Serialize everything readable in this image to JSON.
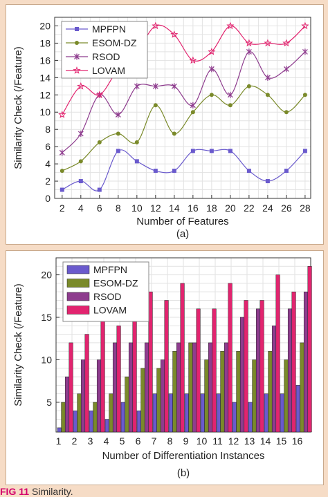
{
  "caption": {
    "label": "FIG 11",
    "text": "Similarity."
  },
  "colors": {
    "MPFPN": "#6a5acd",
    "ESOM-DZ": "#7a8a2a",
    "RSOD": "#8e3c8e",
    "LOVAM": "#e2246f",
    "background": "#f6dcc6"
  },
  "chart_data": [
    {
      "type": "line",
      "title": "",
      "sublabel": "(a)",
      "xlabel": "Number of Features",
      "ylabel": "Similarity Check (/Feature)",
      "x": [
        2,
        4,
        6,
        8,
        10,
        12,
        14,
        16,
        18,
        20,
        22,
        24,
        26,
        28
      ],
      "xlim": [
        1.2,
        28.6
      ],
      "ylim": [
        0,
        21
      ],
      "yticks": [
        0,
        2,
        4,
        6,
        8,
        10,
        12,
        14,
        16,
        18,
        20
      ],
      "grid": true,
      "legend": "top-left",
      "series": [
        {
          "name": "MPFPN",
          "marker": "square",
          "values": [
            1,
            2,
            1,
            5.5,
            4.3,
            3.2,
            3.2,
            5.5,
            5.5,
            5.5,
            3.2,
            2,
            3.2,
            5.5
          ]
        },
        {
          "name": "ESOM-DZ",
          "marker": "circle",
          "values": [
            3.2,
            4.3,
            6.5,
            7.5,
            6.5,
            10.8,
            7.5,
            10,
            12,
            10.8,
            13,
            12,
            10,
            12
          ]
        },
        {
          "name": "RSOD",
          "marker": "asterisk",
          "values": [
            5.3,
            7.5,
            12,
            9.7,
            13,
            13,
            13,
            10.8,
            15,
            12,
            17,
            14,
            15,
            17
          ]
        },
        {
          "name": "LOVAM",
          "marker": "star",
          "values": [
            9.7,
            13,
            12,
            15,
            17,
            20,
            19,
            16,
            17,
            20,
            18,
            18,
            18,
            20
          ]
        }
      ]
    },
    {
      "type": "bar",
      "title": "",
      "sublabel": "(b)",
      "xlabel": "Number of Differentiation Instances",
      "ylabel": "Similarity Check (/Feature)",
      "categories": [
        "1",
        "2",
        "3",
        "4",
        "5",
        "6",
        "7",
        "8",
        "9",
        "10",
        "11",
        "12",
        "13",
        "14",
        "15",
        "16"
      ],
      "ylim": [
        1.5,
        22
      ],
      "yticks": [
        5,
        10,
        15,
        20
      ],
      "grid": true,
      "legend": "top-left",
      "series": [
        {
          "name": "MPFPN",
          "values": [
            2,
            4,
            4,
            3,
            5,
            4,
            6,
            6,
            6,
            6,
            6,
            5,
            5,
            6,
            6,
            7
          ]
        },
        {
          "name": "ESOM-DZ",
          "values": [
            5,
            6,
            5,
            6,
            8,
            9,
            9,
            11,
            12,
            10,
            11,
            11,
            10,
            11,
            10,
            12
          ]
        },
        {
          "name": "RSOD",
          "values": [
            8,
            10,
            10,
            12,
            12,
            12,
            10,
            12,
            12,
            12,
            12,
            15,
            16,
            14,
            16,
            18
          ]
        },
        {
          "name": "LOVAM",
          "values": [
            12,
            13,
            15,
            14,
            16,
            18,
            17,
            19,
            16,
            16,
            19,
            17,
            17,
            20,
            18,
            21
          ]
        }
      ]
    }
  ]
}
